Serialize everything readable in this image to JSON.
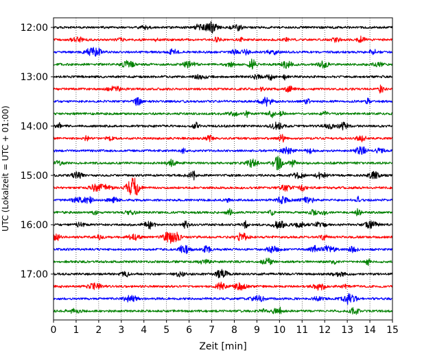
{
  "chart_data": {
    "type": "line",
    "chart_kind": "helicorder",
    "title": "",
    "xlabel": "Zeit  [min]",
    "ylabel": "UTC (Lokalzeit = UTC + 01:00)",
    "xlim": [
      0,
      15
    ],
    "x_ticks": [
      "0",
      "1",
      "2",
      "3",
      "4",
      "5",
      "6",
      "7",
      "8",
      "9",
      "10",
      "11",
      "12",
      "13",
      "14",
      "15"
    ],
    "y_tick_labels": [
      "12:00",
      "13:00",
      "14:00",
      "15:00",
      "16:00",
      "17:00"
    ],
    "grid": "vertical dotted lines at each minute",
    "legend": "none",
    "color_cycle": [
      "#000000",
      "#ff0000",
      "#0000ff",
      "#008000"
    ],
    "rows": [
      {
        "start_time": "12:00",
        "color": "#000000"
      },
      {
        "start_time": "12:15",
        "color": "#ff0000"
      },
      {
        "start_time": "12:30",
        "color": "#0000ff"
      },
      {
        "start_time": "12:45",
        "color": "#008000"
      },
      {
        "start_time": "13:00",
        "color": "#000000"
      },
      {
        "start_time": "13:15",
        "color": "#ff0000"
      },
      {
        "start_time": "13:30",
        "color": "#0000ff"
      },
      {
        "start_time": "13:45",
        "color": "#008000"
      },
      {
        "start_time": "14:00",
        "color": "#000000"
      },
      {
        "start_time": "14:15",
        "color": "#ff0000"
      },
      {
        "start_time": "14:30",
        "color": "#0000ff"
      },
      {
        "start_time": "14:45",
        "color": "#008000"
      },
      {
        "start_time": "15:00",
        "color": "#000000"
      },
      {
        "start_time": "15:15",
        "color": "#ff0000"
      },
      {
        "start_time": "15:30",
        "color": "#0000ff"
      },
      {
        "start_time": "15:45",
        "color": "#008000"
      },
      {
        "start_time": "16:00",
        "color": "#000000"
      },
      {
        "start_time": "16:15",
        "color": "#ff0000"
      },
      {
        "start_time": "16:30",
        "color": "#0000ff"
      },
      {
        "start_time": "16:45",
        "color": "#008000"
      },
      {
        "start_time": "17:00",
        "color": "#000000"
      },
      {
        "start_time": "17:15",
        "color": "#ff0000"
      },
      {
        "start_time": "17:30",
        "color": "#0000ff"
      },
      {
        "start_time": "17:45",
        "color": "#008000"
      }
    ]
  }
}
